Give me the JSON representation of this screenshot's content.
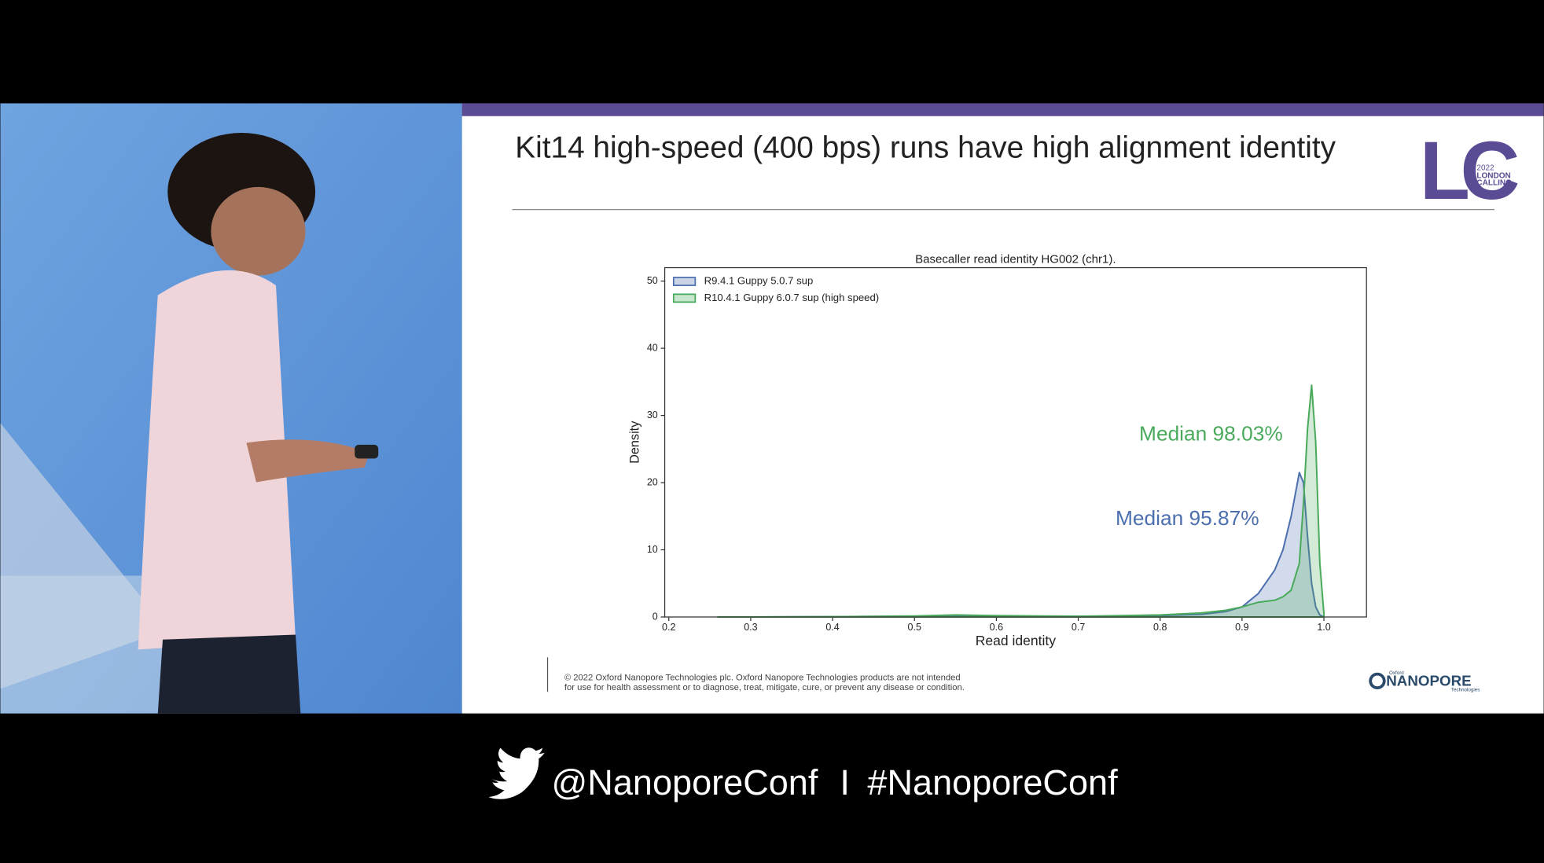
{
  "slide": {
    "title": "Kit14 high-speed (400 bps) runs have high alignment identity",
    "logo": {
      "letters": "LC",
      "year": "2022",
      "line1": "LONDON",
      "line2": "CALLING"
    },
    "footer": [
      "© 2022 Oxford Nanopore Technologies plc. Oxford Nanopore Technologies products are not intended",
      "for use for health assessment or to diagnose, treat, mitigate, cure, or prevent any disease or condition."
    ],
    "brand": {
      "small": "Oxford",
      "name": "NANOPORE",
      "sub": "Technologies"
    }
  },
  "banner": {
    "handle": "@NanoporeConf",
    "separator": "I",
    "hashtag": "#NanoporeConf"
  },
  "chart_data": {
    "type": "area",
    "title": "Basecaller read identity HG002 (chr1).",
    "x_label": "Read identity",
    "y_label": "Density",
    "x": [
      0.26,
      0.3,
      0.4,
      0.5,
      0.55,
      0.6,
      0.7,
      0.8,
      0.85,
      0.88,
      0.9,
      0.92,
      0.94,
      0.95,
      0.96,
      0.97,
      0.975,
      0.98,
      0.985,
      0.99,
      0.995,
      1.0
    ],
    "series": [
      {
        "name": "R9.4.1 Guppy 5.0.7 sup",
        "color": "#4c6fae",
        "annotation": "Median 95.87%",
        "values": [
          0,
          0,
          0.05,
          0.1,
          0.15,
          0.1,
          0.1,
          0.2,
          0.4,
          0.8,
          1.5,
          3.5,
          7,
          10,
          15,
          21.5,
          20,
          12,
          5,
          1.5,
          0.3,
          0
        ]
      },
      {
        "name": "R10.4.1 Guppy 6.0.7 sup (high speed)",
        "color": "#4aaa5c",
        "annotation": "Median 98.03%",
        "values": [
          0,
          0,
          0.05,
          0.15,
          0.3,
          0.2,
          0.1,
          0.3,
          0.6,
          1,
          1.5,
          2.2,
          2.5,
          3,
          4,
          8,
          17,
          28,
          34.5,
          26,
          8,
          0.5
        ]
      }
    ],
    "xlim": [
      0.195,
      1.052
    ],
    "ylim": [
      0,
      52
    ],
    "xticks": [
      0.2,
      0.3,
      0.4,
      0.5,
      0.6,
      0.7,
      0.8,
      0.9,
      {
        "value": 1,
        "label": "1.0"
      }
    ],
    "yticks": [
      0,
      10,
      20,
      30,
      40,
      50
    ],
    "legend": "upper left"
  }
}
